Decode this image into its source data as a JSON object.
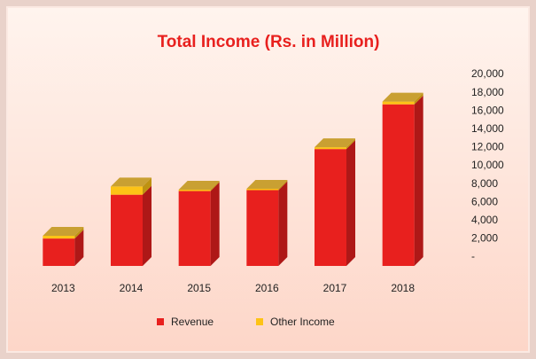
{
  "chart_data": {
    "type": "bar",
    "stacked": true,
    "title": "Total Income (Rs. in Million)",
    "categories": [
      "2013",
      "2014",
      "2015",
      "2016",
      "2017",
      "2018"
    ],
    "series": [
      {
        "name": "Revenue",
        "color": "#e8201e",
        "values": [
          3000,
          7800,
          8200,
          8300,
          12800,
          17700
        ]
      },
      {
        "name": "Other Income",
        "color": "#fdc316",
        "values": [
          300,
          900,
          150,
          150,
          200,
          300
        ]
      }
    ],
    "ylim": [
      0,
      20000
    ],
    "yticks": [
      {
        "value": 0,
        "label": "-"
      },
      {
        "value": 2000,
        "label": "2,000"
      },
      {
        "value": 4000,
        "label": "4,000"
      },
      {
        "value": 6000,
        "label": "6,000"
      },
      {
        "value": 8000,
        "label": "8,000"
      },
      {
        "value": 10000,
        "label": "10,000"
      },
      {
        "value": 12000,
        "label": "12,000"
      },
      {
        "value": 14000,
        "label": "14,000"
      },
      {
        "value": 16000,
        "label": "16,000"
      },
      {
        "value": 18000,
        "label": "18,000"
      },
      {
        "value": 20000,
        "label": "20,000"
      }
    ],
    "y_axis_side": "right",
    "legend": "bottom"
  }
}
